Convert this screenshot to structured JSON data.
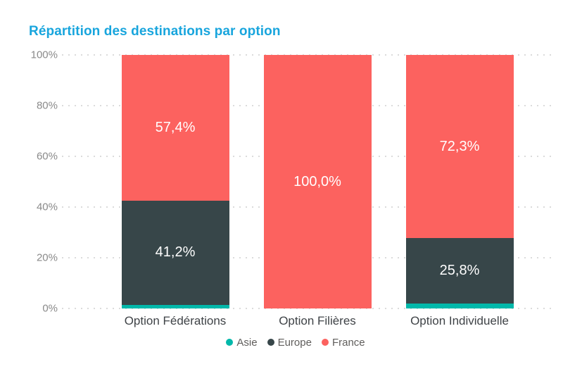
{
  "title": "Répartition des destinations par option",
  "title_color": "#18A5DD",
  "chart_data": {
    "type": "bar",
    "stacked": true,
    "percent_stacked": true,
    "title": "Répartition des destinations par option",
    "xlabel": "",
    "ylabel": "",
    "ylim": [
      0,
      100
    ],
    "grid": "dotted-horizontal",
    "legend_position": "bottom-center",
    "categories": [
      "Option Fédérations",
      "Option Filières",
      "Option Individuelle"
    ],
    "y_ticks": [
      "100%",
      "80%",
      "60%",
      "40%",
      "20%",
      "0%"
    ],
    "series": [
      {
        "name": "Asie",
        "color": "#01B8AA",
        "values": [
          1.4,
          0,
          1.9
        ],
        "labels": [
          "",
          "",
          ""
        ]
      },
      {
        "name": "Europe",
        "color": "#374649",
        "values": [
          41.2,
          0,
          25.8
        ],
        "labels": [
          "41,2%",
          "",
          "25,8%"
        ]
      },
      {
        "name": "France",
        "color": "#FC625F",
        "values": [
          57.4,
          100.0,
          72.3
        ],
        "labels": [
          "57,4%",
          "100,0%",
          "72,3%"
        ]
      }
    ]
  }
}
